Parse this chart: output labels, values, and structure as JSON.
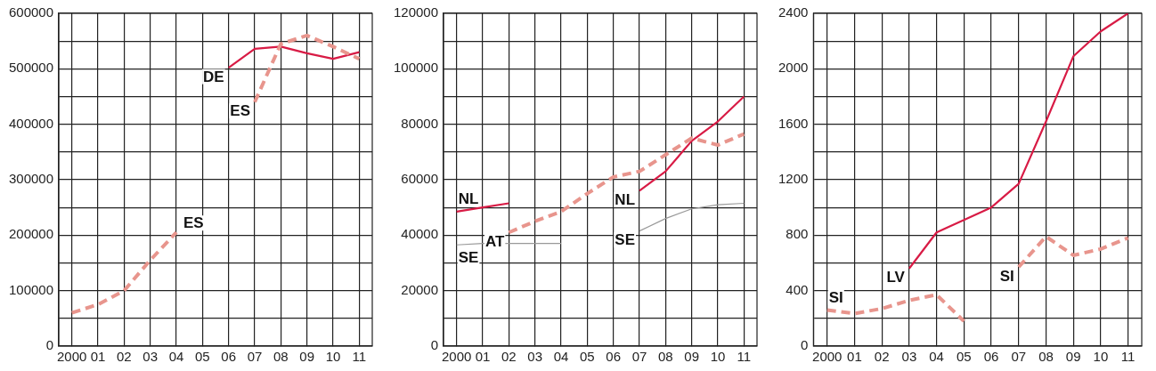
{
  "chart_data": [
    {
      "type": "line",
      "categories": [
        "2000",
        "01",
        "02",
        "03",
        "04",
        "05",
        "06",
        "07",
        "08",
        "09",
        "10",
        "11"
      ],
      "ylim": [
        0,
        600000
      ],
      "yticks": [
        0,
        {
          "value": 50000,
          "label": null
        },
        100000,
        {
          "value": 150000,
          "label": null
        },
        200000,
        {
          "value": 250000,
          "label": null
        },
        300000,
        {
          "value": 350000,
          "label": null
        },
        400000,
        {
          "value": 450000,
          "label": null
        },
        500000,
        {
          "value": 550000,
          "label": null
        },
        600000
      ],
      "grid": true,
      "legend": false,
      "marker": "none",
      "series": [
        {
          "color": "#e8958d",
          "line_style": "dashed",
          "values": [
            60000,
            75000,
            100000,
            155000,
            205000,
            null,
            null,
            440000,
            545000,
            560000,
            540000,
            518000
          ]
        },
        {
          "color": "#d81b45",
          "line_style": "solid",
          "values": [
            null,
            null,
            null,
            null,
            null,
            null,
            502000,
            536000,
            540000,
            528000,
            518000,
            530000
          ]
        }
      ],
      "annotations": [
        {
          "text": "DE",
          "x": "06",
          "y": 502000
        },
        {
          "text": "ES",
          "x": "04",
          "y": 205000
        },
        {
          "text": "ES",
          "x": "07",
          "y": 440000
        }
      ]
    },
    {
      "type": "line",
      "categories": [
        "2000",
        "01",
        "02",
        "03",
        "04",
        "05",
        "06",
        "07",
        "08",
        "09",
        "10",
        "11"
      ],
      "ylim": [
        0,
        120000
      ],
      "yticks": [
        0,
        {
          "value": 10000,
          "label": null
        },
        20000,
        {
          "value": 30000,
          "label": null
        },
        40000,
        {
          "value": 50000,
          "label": null
        },
        60000,
        {
          "value": 70000,
          "label": null
        },
        80000,
        {
          "value": 90000,
          "label": null
        },
        100000,
        {
          "value": 110000,
          "label": null
        },
        120000
      ],
      "grid": true,
      "legend": false,
      "marker": "none",
      "series": [
        {
          "color": "#999999",
          "line_style": "solid",
          "values": [
            36500,
            37000,
            37000,
            37000,
            37000,
            null,
            null,
            41500,
            46000,
            49500,
            51000,
            51500
          ]
        },
        {
          "color": "#e8958d",
          "line_style": "dashed",
          "values": [
            null,
            null,
            41000,
            45000,
            48500,
            55000,
            61000,
            63000,
            69000,
            75000,
            72500,
            76500
          ]
        },
        {
          "color": "#d81b45",
          "line_style": "solid",
          "values": [
            48500,
            50000,
            51500,
            null,
            null,
            null,
            null,
            56000,
            63000,
            74000,
            81000,
            90000
          ]
        }
      ],
      "annotations": [
        {
          "text": "NL",
          "x": "2000",
          "y": 48500
        },
        {
          "text": "AT",
          "x": "02",
          "y": 41000
        },
        {
          "text": "SE",
          "x": "2000",
          "y": 36500
        },
        {
          "text": "NL",
          "x": "07",
          "y": 56000
        },
        {
          "text": "SE",
          "x": "07",
          "y": 41500
        }
      ]
    },
    {
      "type": "line",
      "categories": [
        "2000",
        "01",
        "02",
        "03",
        "04",
        "05",
        "06",
        "07",
        "08",
        "09",
        "10",
        "11"
      ],
      "ylim": [
        0,
        2400
      ],
      "yticks": [
        0,
        {
          "value": 200,
          "label": null
        },
        400,
        {
          "value": 600,
          "label": null
        },
        800,
        {
          "value": 1000,
          "label": null
        },
        1200,
        {
          "value": 1400,
          "label": null
        },
        1600,
        {
          "value": 1800,
          "label": null
        },
        2000,
        {
          "value": 2200,
          "label": null
        },
        2400
      ],
      "grid": true,
      "legend": false,
      "marker": "none",
      "series": [
        {
          "color": "#e8958d",
          "line_style": "dashed",
          "values": [
            260,
            235,
            270,
            330,
            370,
            180,
            null,
            570,
            790,
            655,
            700,
            780
          ]
        },
        {
          "color": "#d81b45",
          "line_style": "solid",
          "values": [
            null,
            null,
            null,
            560,
            820,
            910,
            1000,
            1170,
            1620,
            2090,
            2270,
            2400
          ]
        }
      ],
      "annotations": [
        {
          "text": "SI",
          "x": "2000",
          "y": 260
        },
        {
          "text": "LV",
          "x": "03",
          "y": 560
        },
        {
          "text": "SI",
          "x": "07",
          "y": 570
        }
      ]
    }
  ]
}
